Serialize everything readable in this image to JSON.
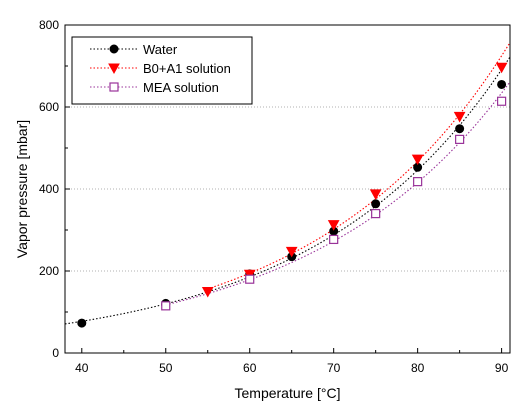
{
  "chart_data": {
    "type": "scatter",
    "title": "",
    "xlabel": "Temperature [°C]",
    "ylabel": "Vapor pressure [mbar]",
    "xlim": [
      38,
      91
    ],
    "ylim": [
      0,
      800
    ],
    "xticks": [
      40,
      50,
      60,
      70,
      80,
      90
    ],
    "yticks": [
      0,
      200,
      400,
      600,
      800
    ],
    "grid": "horizontal dotted",
    "legend_position": "top-left",
    "series": [
      {
        "name": "Water",
        "color": "#000000",
        "marker": "filled-circle",
        "line": "dotted fitted curve",
        "x": [
          40,
          50,
          60,
          65,
          70,
          75,
          80,
          85,
          90
        ],
        "y": [
          73,
          121,
          193,
          235,
          297,
          364,
          453,
          547,
          655
        ],
        "curve_extends_to": 91
      },
      {
        "name": "B0+A1 solution",
        "color": "#ff0000",
        "marker": "filled-down-triangle",
        "line": "dotted fitted curve",
        "x": [
          55,
          60,
          65,
          70,
          75,
          80,
          85,
          90
        ],
        "y": [
          150,
          192,
          248,
          313,
          388,
          473,
          577,
          697
        ],
        "curve_extends_to": 91
      },
      {
        "name": "MEA solution",
        "color": "#993399",
        "marker": "open-square",
        "line": "dotted fitted curve",
        "x": [
          50,
          60,
          70,
          75,
          80,
          85,
          90
        ],
        "y": [
          115,
          180,
          277,
          340,
          418,
          521,
          614
        ],
        "curve_extends_to": 91
      }
    ]
  }
}
